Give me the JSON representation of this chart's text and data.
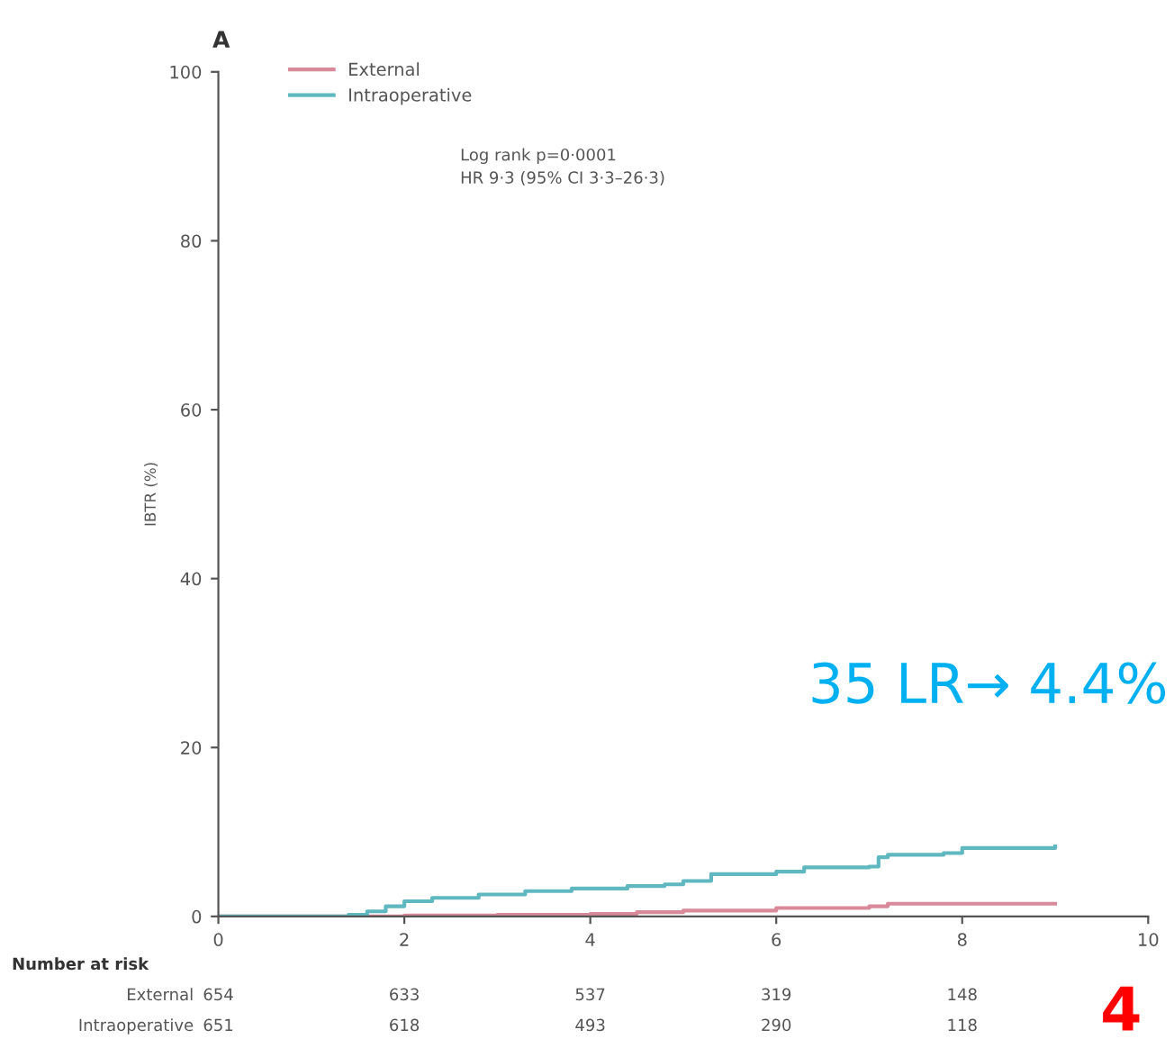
{
  "chart_data": {
    "type": "step",
    "title": "A",
    "ylabel": "IBTR (%)",
    "xlim": [
      0,
      10
    ],
    "xticks": [
      0,
      2,
      4,
      6,
      8,
      10
    ],
    "ylim": [
      0,
      100
    ],
    "yticks": [
      0,
      20,
      40,
      60,
      80,
      100
    ],
    "grid": false,
    "legend": "top left",
    "marker": "none",
    "line_style": "solid",
    "series": [
      {
        "name": "External",
        "color": "#d98a9a",
        "x": [
          0,
          2,
          3,
          4,
          4.5,
          5,
          6,
          7,
          7.2,
          9.0
        ],
        "values": [
          0,
          0.1,
          0.2,
          0.3,
          0.5,
          0.7,
          1.0,
          1.2,
          1.5,
          1.5
        ]
      },
      {
        "name": "Intraoperative",
        "color": "#5fb8c0",
        "x": [
          0,
          1.4,
          1.6,
          1.8,
          2.0,
          2.3,
          2.8,
          3.3,
          3.8,
          4.4,
          4.8,
          5.0,
          5.3,
          6.0,
          6.3,
          7.0,
          7.1,
          7.2,
          7.8,
          8.0,
          9.0
        ],
        "values": [
          0,
          0.2,
          0.6,
          1.2,
          1.8,
          2.2,
          2.6,
          3.0,
          3.3,
          3.6,
          3.8,
          4.2,
          5.0,
          5.3,
          5.8,
          5.9,
          7.0,
          7.3,
          7.5,
          8.1,
          8.3
        ]
      }
    ],
    "annotations": [
      "Log rank p=0·0001",
      "HR 9·3 (95% CI 3·3–26·3)",
      "Number at risk",
      "654",
      "633",
      "537",
      "319",
      "148",
      "651",
      "618",
      "493",
      "290",
      "118",
      "35 LR→ 4.4%",
      "4"
    ]
  }
}
